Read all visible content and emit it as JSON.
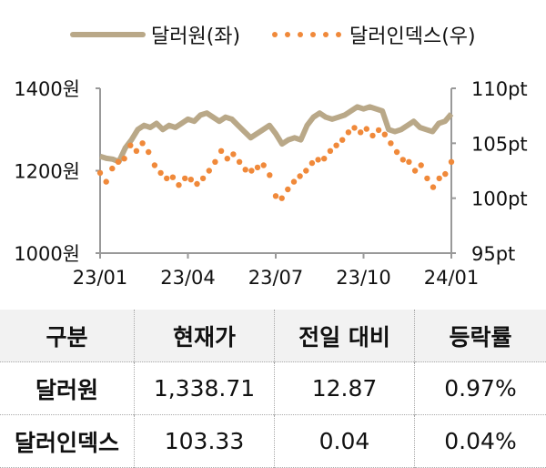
{
  "chart_data": {
    "type": "line",
    "legend": [
      {
        "name": "달러원(좌)",
        "color": "#b9a888",
        "style": "line"
      },
      {
        "name": "달러인덱스(우)",
        "color": "#f0893a",
        "style": "dotted"
      }
    ],
    "legend_placement": "top",
    "x_ticks": [
      "23/01",
      "23/04",
      "23/07",
      "23/10",
      "24/01"
    ],
    "y_left": {
      "ticks": [
        "1400원",
        "1200원",
        "1000원"
      ],
      "range": [
        1000,
        1400
      ]
    },
    "y_right": {
      "ticks": [
        "110pt",
        "105pt",
        "100pt",
        "95pt"
      ],
      "range": [
        95,
        110
      ]
    },
    "series": [
      {
        "name": "달러원(좌)",
        "axis": "left",
        "values": [
          1235,
          1230,
          1228,
          1222,
          1255,
          1275,
          1300,
          1310,
          1305,
          1315,
          1300,
          1310,
          1305,
          1315,
          1325,
          1320,
          1335,
          1340,
          1330,
          1320,
          1330,
          1325,
          1310,
          1295,
          1280,
          1290,
          1300,
          1310,
          1290,
          1265,
          1275,
          1280,
          1275,
          1310,
          1330,
          1340,
          1330,
          1325,
          1330,
          1335,
          1345,
          1355,
          1350,
          1355,
          1350,
          1345,
          1300,
          1295,
          1300,
          1310,
          1320,
          1305,
          1300,
          1295,
          1315,
          1320,
          1338
        ]
      },
      {
        "name": "달러인덱스(우)",
        "axis": "right",
        "values": [
          102.3,
          101.5,
          102.7,
          103.3,
          103.6,
          104.8,
          104.3,
          105.0,
          104.2,
          103.0,
          102.3,
          101.8,
          101.9,
          101.2,
          101.8,
          101.7,
          101.3,
          101.8,
          102.5,
          103.3,
          104.3,
          103.6,
          104.0,
          103.3,
          102.6,
          102.5,
          102.8,
          103.0,
          102.1,
          100.2,
          100.0,
          100.8,
          101.5,
          102.0,
          102.5,
          103.2,
          103.5,
          103.6,
          104.3,
          104.8,
          105.3,
          106.0,
          106.4,
          106.0,
          106.3,
          105.7,
          106.2,
          105.8,
          105.0,
          104.2,
          103.5,
          103.3,
          102.5,
          103.0,
          101.8,
          101.0,
          101.8,
          102.2,
          103.3
        ]
      }
    ]
  },
  "table": {
    "headers": [
      "구분",
      "현재가",
      "전일 대비",
      "등락률"
    ],
    "rows": [
      {
        "label": "달러원",
        "price": "1,338.71",
        "change": "12.87",
        "rate": "0.97%"
      },
      {
        "label": "달러인덱스",
        "price": "103.33",
        "change": "0.04",
        "rate": "0.04%"
      }
    ]
  }
}
